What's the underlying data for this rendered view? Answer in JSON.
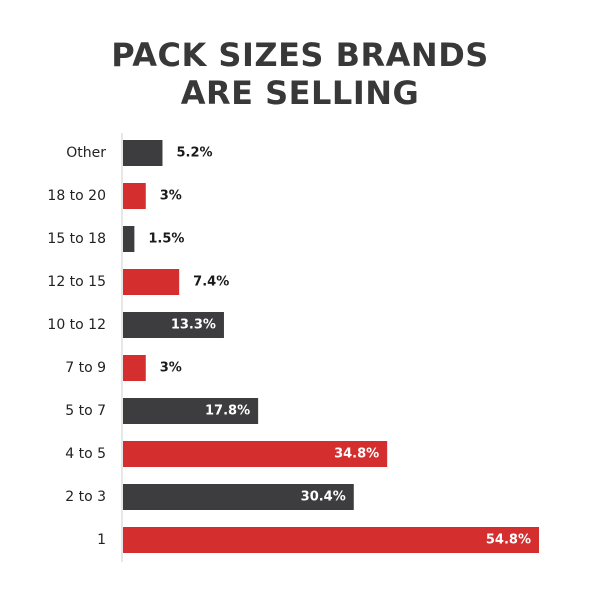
{
  "title_line1": "PACK SIZES BRANDS",
  "title_line2": "ARE SELLING",
  "colors": {
    "dark": "#3d3d3f",
    "red": "#d42e2e",
    "axis": "#cfcfcf",
    "text": "#222222",
    "label_inside": "#ffffff",
    "label_outside": "#1a1a1a"
  },
  "chart_data": {
    "type": "bar",
    "orientation": "horizontal",
    "title": "PACK SIZES BRANDS ARE SELLING",
    "categories": [
      "Other",
      "18 to 20",
      "15 to 18",
      "12 to 15",
      "10 to 12",
      "7 to 9",
      "5 to 7",
      "4 to 5",
      "2 to 3",
      "1"
    ],
    "values": [
      5.2,
      3,
      1.5,
      7.4,
      13.3,
      3,
      17.8,
      34.8,
      30.4,
      54.8
    ],
    "value_labels": [
      "5.2%",
      "3%",
      "1.5%",
      "7.4%",
      "13.3%",
      "3%",
      "17.8%",
      "34.8%",
      "30.4%",
      "54.8%"
    ],
    "bar_colors": [
      "dark",
      "red",
      "dark",
      "red",
      "dark",
      "red",
      "dark",
      "red",
      "dark",
      "red"
    ],
    "xlim": [
      0,
      54.8
    ],
    "grid": false,
    "legend": "none"
  }
}
